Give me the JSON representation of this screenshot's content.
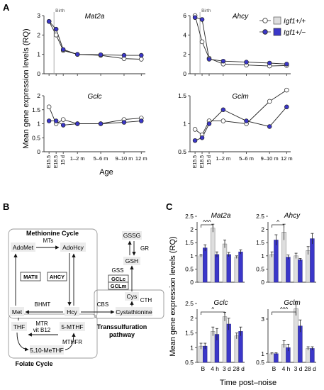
{
  "colors": {
    "wt": "#dedede",
    "het": "#3b37c9",
    "axis": "#333333",
    "birth": "#999999"
  },
  "panels": {
    "A": "A",
    "B": "B",
    "C": "C"
  },
  "panelA": {
    "ylabel": "Mean gene expression levels (RQ)",
    "xlabel": "Age",
    "birth_label": "Birth",
    "legend": {
      "wt": "Igf1+/+",
      "het": "Igf1+/−"
    },
    "x_ticks": [
      "E15.5",
      "E18.5",
      "15 d",
      "1–2 m",
      "5–6 m",
      "9–10 m",
      "12 m"
    ]
  },
  "panelB": {
    "methionine_cycle": "Methionine Cycle",
    "folate_cycle": "Folate Cycle",
    "transsulfuration": [
      "Transsulfuration",
      "pathway"
    ],
    "nodes": {
      "adomet": "AdoMet",
      "adohcy": "AdoHcy",
      "mts": "MTs",
      "mat2": "MATII",
      "ahcy": "AHCY",
      "met": "Met",
      "hcy": "Hcy",
      "bhmt": "BHMT",
      "thf": "THF",
      "mtr1": "MTR",
      "mtr2": "vit B12",
      "mthf5": "5-MTHF",
      "mthfr": "MTHFR",
      "mthf510": "5,10-MeTHF",
      "cbs": "CBS",
      "cystathionine": "Cystathionine",
      "cth": "CTH",
      "cys": "Cys",
      "gclc": "GCLc",
      "gclm": "GCLm",
      "gss": "GSS",
      "gsh": "GSH",
      "gr": "GR",
      "gssg": "GSSG"
    }
  },
  "panelC": {
    "ylabel": "Mean gene expression levels (RQ)",
    "xlabel": "Time post–noise",
    "categories": [
      "B",
      "4 h",
      "3 d",
      "28 d"
    ]
  },
  "chart_data": [
    {
      "type": "line",
      "title": "Mat2a",
      "ylim": [
        0,
        3
      ],
      "yticks": [
        0,
        1,
        2,
        3
      ],
      "x": [
        0,
        1,
        2,
        3,
        4,
        5,
        6
      ],
      "series": [
        {
          "name": "Igf1+/+",
          "values": [
            2.7,
            2.0,
            1.2,
            1.0,
            0.95,
            0.78,
            0.75
          ]
        },
        {
          "name": "Igf1+/−",
          "values": [
            2.7,
            2.3,
            1.25,
            1.0,
            0.98,
            0.95,
            0.95
          ]
        }
      ]
    },
    {
      "type": "line",
      "title": "Ahcy",
      "ylim": [
        0,
        6
      ],
      "yticks": [
        0,
        2,
        4,
        6
      ],
      "x": [
        0,
        1,
        2,
        3,
        4,
        5,
        6
      ],
      "series": [
        {
          "name": "Igf1+/+",
          "values": [
            6.0,
            3.3,
            1.6,
            1.0,
            0.9,
            0.8,
            0.85
          ]
        },
        {
          "name": "Igf1+/−",
          "values": [
            5.8,
            5.6,
            1.5,
            1.3,
            1.2,
            1.1,
            1.0
          ]
        }
      ]
    },
    {
      "type": "line",
      "title": "Gclc",
      "ylim": [
        0,
        2.0
      ],
      "yticks": [
        0,
        0.5,
        1.0,
        1.5,
        2.0
      ],
      "x": [
        0,
        1,
        2,
        3,
        4,
        5,
        6
      ],
      "series": [
        {
          "name": "Igf1+/+",
          "values": [
            1.6,
            1.0,
            1.15,
            1.0,
            1.0,
            1.15,
            1.2
          ]
        },
        {
          "name": "Igf1+/−",
          "values": [
            1.1,
            1.1,
            0.95,
            1.0,
            1.0,
            1.05,
            1.1
          ]
        }
      ]
    },
    {
      "type": "line",
      "title": "Gclm",
      "ylim": [
        0.5,
        1.5
      ],
      "yticks": [
        0.5,
        1.0,
        1.5
      ],
      "x": [
        0,
        1,
        2,
        3,
        4,
        5,
        6
      ],
      "series": [
        {
          "name": "Igf1+/+",
          "values": [
            0.9,
            0.8,
            1.05,
            1.05,
            1.0,
            1.4,
            1.6
          ]
        },
        {
          "name": "Igf1+/−",
          "values": [
            0.7,
            0.75,
            1.0,
            1.25,
            1.05,
            0.95,
            1.3
          ]
        }
      ]
    },
    {
      "type": "bar",
      "title": "Mat2a",
      "ylim": [
        0,
        2.5
      ],
      "yticks": [
        0,
        0.5,
        1.0,
        1.5,
        2.0,
        2.5
      ],
      "categories": [
        "B",
        "4 h",
        "3 d",
        "28 d"
      ],
      "series": [
        {
          "name": "Igf1+/+",
          "values": [
            1.0,
            2.05,
            1.45,
            0.95
          ]
        },
        {
          "name": "Igf1+/−",
          "values": [
            1.3,
            1.05,
            1.05,
            1.15
          ]
        }
      ],
      "errors": [
        [
          0.05,
          0.15,
          0.15,
          0.05
        ],
        [
          0.12,
          0.1,
          0.08,
          0.08
        ]
      ],
      "annotation": {
        "text": "^^^",
        "from": 0,
        "to": 1
      }
    },
    {
      "type": "bar",
      "title": "Ahcy",
      "ylim": [
        0,
        2.5
      ],
      "yticks": [
        0,
        0.5,
        1.0,
        1.5,
        2.0,
        2.5
      ],
      "categories": [
        "B",
        "4 h",
        "3 d",
        "28 d"
      ],
      "series": [
        {
          "name": "Igf1+/+",
          "values": [
            1.05,
            1.9,
            1.0,
            1.2
          ]
        },
        {
          "name": "Igf1+/−",
          "values": [
            1.6,
            0.95,
            0.85,
            1.65
          ]
        }
      ],
      "errors": [
        [
          0.1,
          0.3,
          0.1,
          0.15
        ],
        [
          0.2,
          0.08,
          0.05,
          0.2
        ]
      ],
      "annotation": {
        "text": "^",
        "from": 0,
        "to": 1
      }
    },
    {
      "type": "bar",
      "title": "Gclc",
      "ylim": [
        0.5,
        2.5
      ],
      "yticks": [
        0.5,
        1.0,
        1.5,
        2.0,
        2.5
      ],
      "categories": [
        "B",
        "4 h",
        "3 d",
        "28 d"
      ],
      "series": [
        {
          "name": "Igf1+/+",
          "values": [
            1.05,
            1.55,
            2.05,
            1.4
          ]
        },
        {
          "name": "Igf1+/−",
          "values": [
            1.05,
            1.45,
            1.8,
            1.55
          ]
        }
      ],
      "errors": [
        [
          0.1,
          0.15,
          0.15,
          0.1
        ],
        [
          0.1,
          0.2,
          0.2,
          0.15
        ]
      ],
      "annotation": {
        "text": "^",
        "from": 0,
        "to": 2
      }
    },
    {
      "type": "bar",
      "title": "Gclm",
      "ylim": [
        0.5,
        3
      ],
      "yticks": [
        0.5,
        1,
        3
      ],
      "categories": [
        "B",
        "4 h",
        "3 d",
        "28 d"
      ],
      "series": [
        {
          "name": "Igf1+/+",
          "values": [
            1.0,
            1.55,
            3.6,
            1.3
          ]
        },
        {
          "name": "Igf1+/−",
          "values": [
            1.0,
            1.35,
            2.6,
            1.3
          ]
        }
      ],
      "errors": [
        [
          0.05,
          0.2,
          0.4,
          0.1
        ],
        [
          0.05,
          0.2,
          0.35,
          0.1
        ]
      ],
      "annotation": {
        "text": "^^^",
        "from": 0,
        "to": 2
      }
    }
  ]
}
